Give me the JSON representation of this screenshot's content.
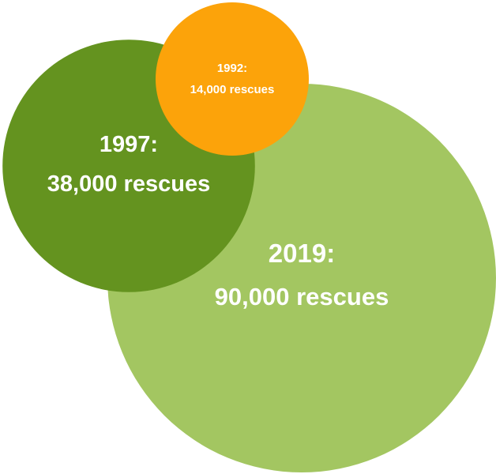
{
  "chart_data": {
    "type": "bubble",
    "series": [
      {
        "year": "2019:",
        "label": "90,000 rescues",
        "value": 90000,
        "color": "#a3c661"
      },
      {
        "year": "1997:",
        "label": "38,000 rescues",
        "value": 38000,
        "color": "#64931f"
      },
      {
        "year": "1992:",
        "label": "14,000 rescues",
        "value": 14000,
        "color": "#fca30a"
      }
    ]
  }
}
